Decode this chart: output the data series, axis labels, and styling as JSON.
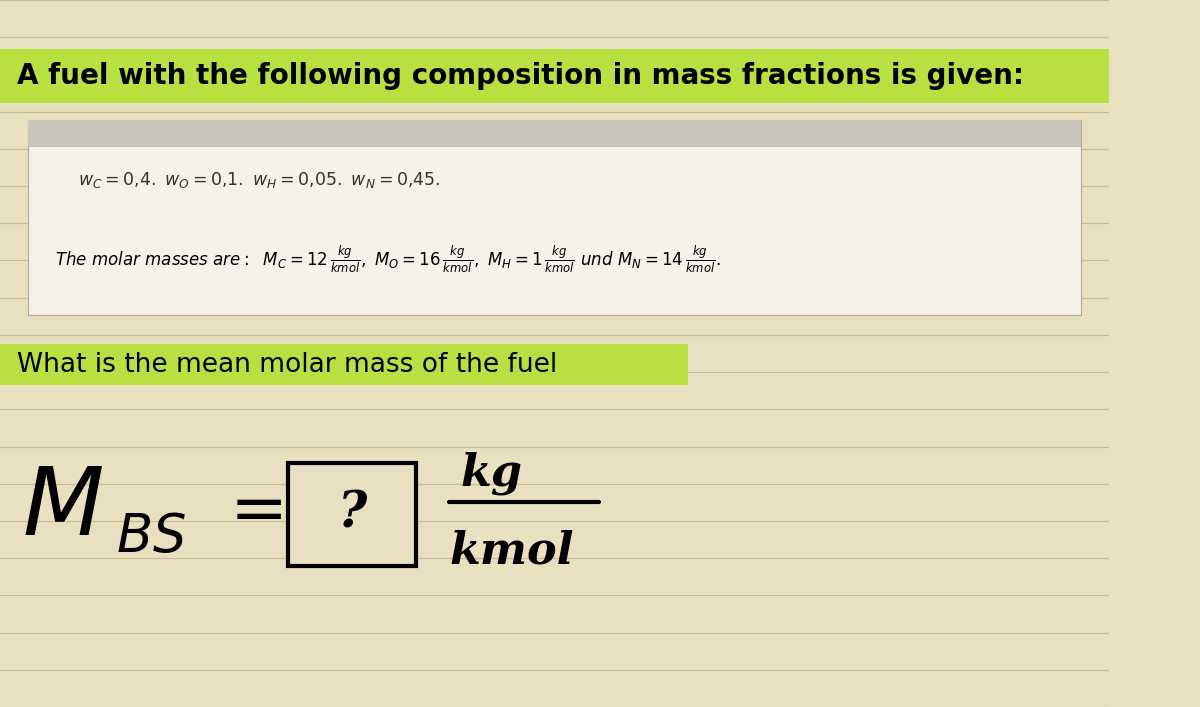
{
  "bg_color": "#e8e0c0",
  "line_color": "#c8b890",
  "highlight_green": "#b8e040",
  "white_box_color": "#f5f2e8",
  "white_box_top_color": "#d0ccc0",
  "title_text": "A fuel with the following composition in mass fractions is given:",
  "title_fontsize": 20,
  "question_text": "What is the mean molar mass of the fuel",
  "question_fontsize": 19,
  "figure_width": 12.0,
  "figure_height": 7.07,
  "dpi": 100,
  "num_lines": 20
}
